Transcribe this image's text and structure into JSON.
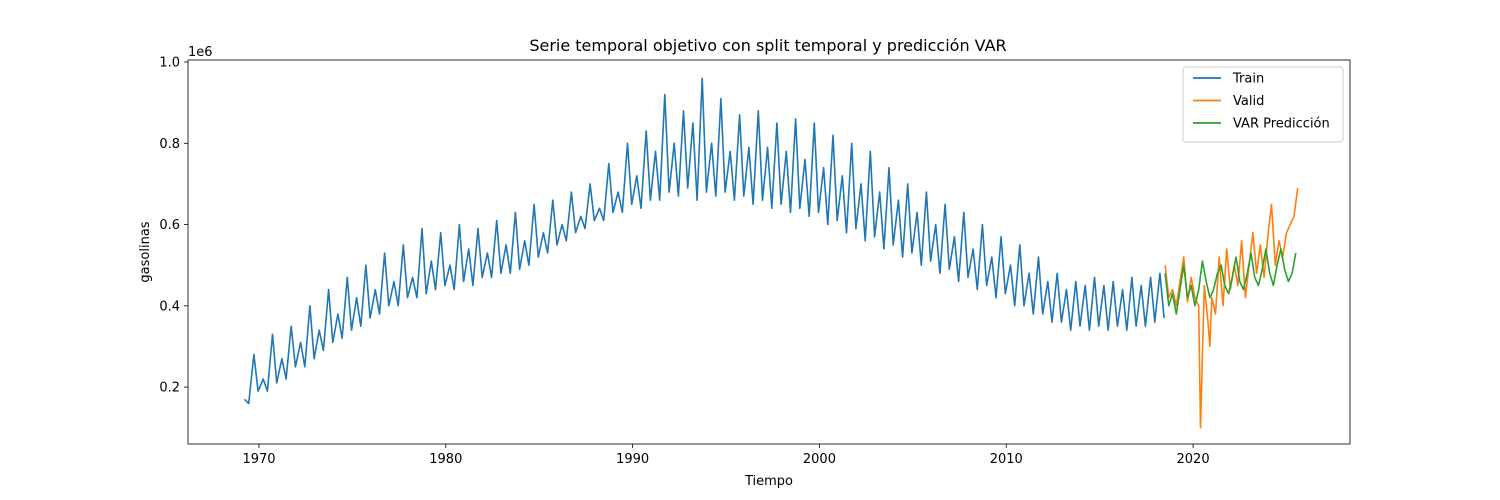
{
  "chart_data": {
    "type": "line",
    "title": "Serie temporal objetivo con split temporal y predicción VAR",
    "xlabel": "Tiempo",
    "ylabel": "gasolinas",
    "y_offset_label": "1e6",
    "xlim": [
      1966.2,
      2028.4
    ],
    "ylim": [
      0.06,
      1.005
    ],
    "x_ticks": [
      1970,
      1980,
      1990,
      2000,
      2010,
      2020
    ],
    "x_tick_labels": [
      "1970",
      "1980",
      "1990",
      "2000",
      "2010",
      "2020"
    ],
    "y_ticks": [
      0.2,
      0.4,
      0.6,
      0.8,
      1.0
    ],
    "y_tick_labels": [
      "0.2",
      "0.4",
      "0.6",
      "0.8",
      "1.0"
    ],
    "grid": false,
    "legend_position": "top-right",
    "colors": {
      "train": "#1f77b4",
      "valid": "#ff7f0e",
      "var": "#2ca02c"
    },
    "series": [
      {
        "name": "Train",
        "color": "#1f77b4",
        "x_start": 1969.0,
        "x_step": 0.5,
        "high": [
          0.17,
          0.28,
          0.22,
          0.33,
          0.27,
          0.35,
          0.31,
          0.4,
          0.34,
          0.44,
          0.38,
          0.47,
          0.42,
          0.5,
          0.44,
          0.53,
          0.46,
          0.55,
          0.47,
          0.59,
          0.51,
          0.58,
          0.5,
          0.6,
          0.54,
          0.59,
          0.53,
          0.61,
          0.55,
          0.63,
          0.56,
          0.65,
          0.58,
          0.66,
          0.6,
          0.68,
          0.62,
          0.7,
          0.64,
          0.75,
          0.68,
          0.8,
          0.72,
          0.83,
          0.78,
          0.92,
          0.8,
          0.88,
          0.85,
          0.96,
          0.8,
          0.91,
          0.78,
          0.87,
          0.79,
          0.88,
          0.79,
          0.85,
          0.78,
          0.86,
          0.76,
          0.85,
          0.74,
          0.82,
          0.72,
          0.8,
          0.7,
          0.78,
          0.68,
          0.74,
          0.66,
          0.7,
          0.63,
          0.68,
          0.6,
          0.65,
          0.57,
          0.63,
          0.54,
          0.6,
          0.52,
          0.57,
          0.5,
          0.55,
          0.48,
          0.52,
          0.46,
          0.48,
          0.44,
          0.46,
          0.45,
          0.47,
          0.45,
          0.46,
          0.44,
          0.47,
          0.45,
          0.47,
          0.48
        ],
        "low": [
          0.16,
          0.19,
          0.19,
          0.21,
          0.22,
          0.25,
          0.25,
          0.27,
          0.29,
          0.31,
          0.32,
          0.34,
          0.35,
          0.37,
          0.38,
          0.4,
          0.4,
          0.42,
          0.42,
          0.43,
          0.44,
          0.45,
          0.44,
          0.46,
          0.45,
          0.47,
          0.47,
          0.48,
          0.48,
          0.49,
          0.5,
          0.52,
          0.53,
          0.55,
          0.56,
          0.58,
          0.59,
          0.61,
          0.61,
          0.63,
          0.63,
          0.65,
          0.64,
          0.66,
          0.66,
          0.68,
          0.67,
          0.69,
          0.66,
          0.68,
          0.67,
          0.68,
          0.66,
          0.67,
          0.65,
          0.66,
          0.64,
          0.65,
          0.63,
          0.64,
          0.62,
          0.63,
          0.6,
          0.61,
          0.58,
          0.59,
          0.56,
          0.57,
          0.54,
          0.55,
          0.52,
          0.53,
          0.5,
          0.51,
          0.48,
          0.49,
          0.46,
          0.47,
          0.44,
          0.45,
          0.42,
          0.43,
          0.4,
          0.4,
          0.38,
          0.38,
          0.36,
          0.36,
          0.34,
          0.35,
          0.34,
          0.35,
          0.34,
          0.35,
          0.34,
          0.35,
          0.35,
          0.36,
          0.37
        ]
      },
      {
        "name": "Valid",
        "color": "#ff7f0e",
        "x": [
          2018.5,
          2018.7,
          2018.9,
          2019.1,
          2019.3,
          2019.5,
          2019.7,
          2019.9,
          2020.1,
          2020.3,
          2020.4,
          2020.6,
          2020.8,
          2020.9,
          2021.0,
          2021.2,
          2021.4,
          2021.6,
          2021.8,
          2022.0,
          2022.2,
          2022.4,
          2022.6,
          2022.8,
          2023.0,
          2023.2,
          2023.4,
          2023.6,
          2023.8,
          2024.0,
          2024.2,
          2024.4,
          2024.6,
          2024.8,
          2025.0,
          2025.2,
          2025.4,
          2025.6
        ],
        "y": [
          0.5,
          0.42,
          0.44,
          0.4,
          0.46,
          0.52,
          0.41,
          0.47,
          0.42,
          0.4,
          0.1,
          0.45,
          0.36,
          0.3,
          0.42,
          0.38,
          0.52,
          0.4,
          0.54,
          0.44,
          0.5,
          0.45,
          0.56,
          0.42,
          0.5,
          0.58,
          0.48,
          0.55,
          0.47,
          0.57,
          0.65,
          0.5,
          0.56,
          0.52,
          0.58,
          0.6,
          0.62,
          0.69
        ]
      },
      {
        "name": "VAR Predicción",
        "color": "#2ca02c",
        "x": [
          2018.5,
          2018.7,
          2018.9,
          2019.1,
          2019.3,
          2019.5,
          2019.7,
          2019.9,
          2020.1,
          2020.3,
          2020.5,
          2020.7,
          2020.9,
          2021.1,
          2021.3,
          2021.5,
          2021.7,
          2021.9,
          2022.1,
          2022.3,
          2022.5,
          2022.7,
          2022.9,
          2023.1,
          2023.3,
          2023.5,
          2023.7,
          2023.9,
          2024.1,
          2024.3,
          2024.5,
          2024.7,
          2024.9,
          2025.1,
          2025.3,
          2025.5
        ],
        "y": [
          0.48,
          0.4,
          0.43,
          0.38,
          0.44,
          0.5,
          0.42,
          0.45,
          0.4,
          0.44,
          0.51,
          0.46,
          0.42,
          0.44,
          0.48,
          0.5,
          0.45,
          0.43,
          0.47,
          0.52,
          0.46,
          0.44,
          0.48,
          0.53,
          0.47,
          0.45,
          0.49,
          0.54,
          0.48,
          0.45,
          0.5,
          0.54,
          0.49,
          0.46,
          0.48,
          0.53
        ]
      }
    ]
  }
}
